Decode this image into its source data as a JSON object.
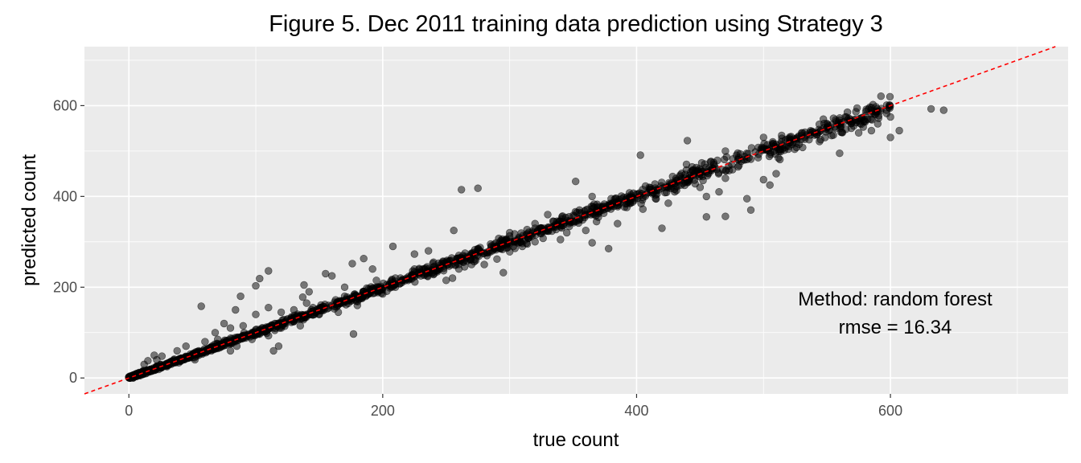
{
  "chart_data": {
    "type": "scatter",
    "title": "Figure 5. Dec 2011 training data prediction using Strategy 3",
    "xlabel": "true count",
    "ylabel": "predicted count",
    "xlim": [
      -35,
      740
    ],
    "ylim": [
      -35,
      730
    ],
    "x_ticks": [
      0,
      200,
      400,
      600
    ],
    "y_ticks": [
      0,
      200,
      400,
      600
    ],
    "grid": true,
    "reference_line": {
      "slope": 1,
      "intercept": 0,
      "style": "dashed",
      "color": "#ff0000"
    },
    "point_color": "#000000",
    "point_opacity": 0.5,
    "panel_background": "#ebebeb",
    "annotation": [
      "Method: random forest",
      "rmse = 16.34"
    ],
    "sample_points": [
      [
        256,
        325
      ],
      [
        262,
        415
      ],
      [
        275,
        418
      ],
      [
        352,
        433
      ],
      [
        403,
        491
      ],
      [
        470,
        500
      ],
      [
        440,
        523
      ],
      [
        500,
        530
      ],
      [
        597,
        590
      ],
      [
        632,
        593
      ],
      [
        642,
        590
      ],
      [
        600,
        575
      ],
      [
        582,
        570
      ],
      [
        570,
        565
      ],
      [
        559,
        560
      ],
      [
        545,
        545
      ],
      [
        585,
        545
      ],
      [
        607,
        545
      ],
      [
        600,
        530
      ],
      [
        560,
        495
      ],
      [
        526,
        508
      ],
      [
        480,
        465
      ],
      [
        450,
        420
      ],
      [
        420,
        330
      ],
      [
        455,
        355
      ],
      [
        470,
        356
      ],
      [
        487,
        395
      ],
      [
        505,
        425
      ],
      [
        365,
        298
      ],
      [
        378,
        285
      ],
      [
        340,
        305
      ],
      [
        320,
        330
      ],
      [
        330,
        360
      ],
      [
        355,
        370
      ],
      [
        225,
        273
      ],
      [
        236,
        280
      ],
      [
        208,
        290
      ],
      [
        185,
        263
      ],
      [
        176,
        252
      ],
      [
        192,
        240
      ],
      [
        103,
        219
      ],
      [
        100,
        203
      ],
      [
        57,
        158
      ],
      [
        88,
        180
      ],
      [
        84,
        150
      ],
      [
        110,
        155
      ],
      [
        137,
        178
      ],
      [
        142,
        190
      ],
      [
        110,
        236
      ],
      [
        155,
        230
      ],
      [
        160,
        225
      ],
      [
        138,
        205
      ],
      [
        170,
        200
      ],
      [
        195,
        215
      ],
      [
        230,
        225
      ],
      [
        240,
        228
      ],
      [
        260,
        240
      ],
      [
        280,
        250
      ],
      [
        295,
        232
      ],
      [
        320,
        300
      ],
      [
        310,
        290
      ],
      [
        300,
        278
      ],
      [
        290,
        262
      ],
      [
        270,
        250
      ],
      [
        255,
        220
      ],
      [
        250,
        215
      ],
      [
        210,
        200
      ],
      [
        200,
        185
      ],
      [
        180,
        175
      ],
      [
        165,
        168
      ],
      [
        150,
        150
      ],
      [
        130,
        125
      ],
      [
        115,
        105
      ],
      [
        110,
        93
      ],
      [
        118,
        70
      ],
      [
        114,
        60
      ],
      [
        177,
        97
      ],
      [
        97,
        85
      ],
      [
        55,
        50
      ],
      [
        40,
        38
      ],
      [
        30,
        25
      ],
      [
        20,
        20
      ],
      [
        10,
        9
      ],
      [
        5,
        5
      ],
      [
        12,
        30
      ],
      [
        15,
        38
      ],
      [
        22,
        40
      ],
      [
        26,
        48
      ],
      [
        20,
        50
      ],
      [
        38,
        60
      ],
      [
        45,
        70
      ],
      [
        60,
        80
      ],
      [
        70,
        85
      ],
      [
        68,
        100
      ],
      [
        80,
        110
      ],
      [
        75,
        120
      ],
      [
        90,
        115
      ],
      [
        100,
        140
      ],
      [
        120,
        145
      ],
      [
        130,
        150
      ],
      [
        140,
        165
      ],
      [
        70,
        65
      ],
      [
        52,
        40
      ],
      [
        80,
        60
      ],
      [
        135,
        115
      ],
      [
        165,
        145
      ],
      [
        180,
        160
      ],
      [
        200,
        198
      ],
      [
        215,
        210
      ],
      [
        230,
        232
      ],
      [
        245,
        240
      ],
      [
        270,
        265
      ],
      [
        290,
        290
      ],
      [
        300,
        305
      ],
      [
        315,
        308
      ],
      [
        330,
        330
      ],
      [
        340,
        345
      ],
      [
        350,
        345
      ],
      [
        360,
        370
      ],
      [
        370,
        365
      ],
      [
        380,
        378
      ],
      [
        390,
        398
      ],
      [
        400,
        405
      ],
      [
        410,
        420
      ],
      [
        430,
        430
      ],
      [
        445,
        448
      ],
      [
        460,
        462
      ],
      [
        475,
        470
      ],
      [
        490,
        482
      ],
      [
        510,
        515
      ],
      [
        520,
        510
      ],
      [
        530,
        535
      ],
      [
        545,
        525
      ],
      [
        555,
        535
      ],
      [
        565,
        548
      ],
      [
        575,
        540
      ],
      [
        590,
        560
      ],
      [
        360,
        325
      ],
      [
        345,
        320
      ],
      [
        385,
        340
      ],
      [
        395,
        385
      ],
      [
        405,
        372
      ],
      [
        425,
        385
      ],
      [
        455,
        400
      ],
      [
        465,
        410
      ],
      [
        490,
        370
      ],
      [
        510,
        450
      ],
      [
        500,
        437
      ],
      [
        470,
        440
      ],
      [
        430,
        410
      ],
      [
        415,
        395
      ],
      [
        380,
        395
      ],
      [
        365,
        400
      ],
      [
        320,
        340
      ],
      [
        300,
        320
      ],
      [
        285,
        295
      ],
      [
        275,
        285
      ],
      [
        260,
        270
      ],
      [
        240,
        255
      ],
      [
        225,
        240
      ],
      [
        210,
        220
      ],
      [
        195,
        195
      ],
      [
        185,
        190
      ],
      [
        170,
        180
      ],
      [
        160,
        160
      ],
      [
        150,
        140
      ],
      [
        140,
        140
      ],
      [
        125,
        130
      ],
      [
        115,
        120
      ],
      [
        100,
        95
      ],
      [
        90,
        90
      ],
      [
        85,
        70
      ],
      [
        65,
        60
      ],
      [
        55,
        60
      ],
      [
        45,
        45
      ],
      [
        35,
        35
      ],
      [
        25,
        30
      ],
      [
        18,
        15
      ],
      [
        8,
        12
      ],
      [
        3,
        2
      ],
      [
        120,
        110
      ],
      [
        145,
        155
      ],
      [
        175,
        170
      ],
      [
        205,
        205
      ],
      [
        220,
        215
      ],
      [
        235,
        245
      ],
      [
        265,
        260
      ],
      [
        280,
        275
      ],
      [
        305,
        300
      ],
      [
        325,
        318
      ],
      [
        335,
        335
      ],
      [
        355,
        350
      ],
      [
        375,
        372
      ],
      [
        395,
        392
      ],
      [
        420,
        418
      ],
      [
        435,
        425
      ],
      [
        450,
        452
      ],
      [
        485,
        488
      ],
      [
        515,
        505
      ],
      [
        540,
        540
      ],
      [
        550,
        552
      ],
      [
        580,
        578
      ]
    ]
  }
}
